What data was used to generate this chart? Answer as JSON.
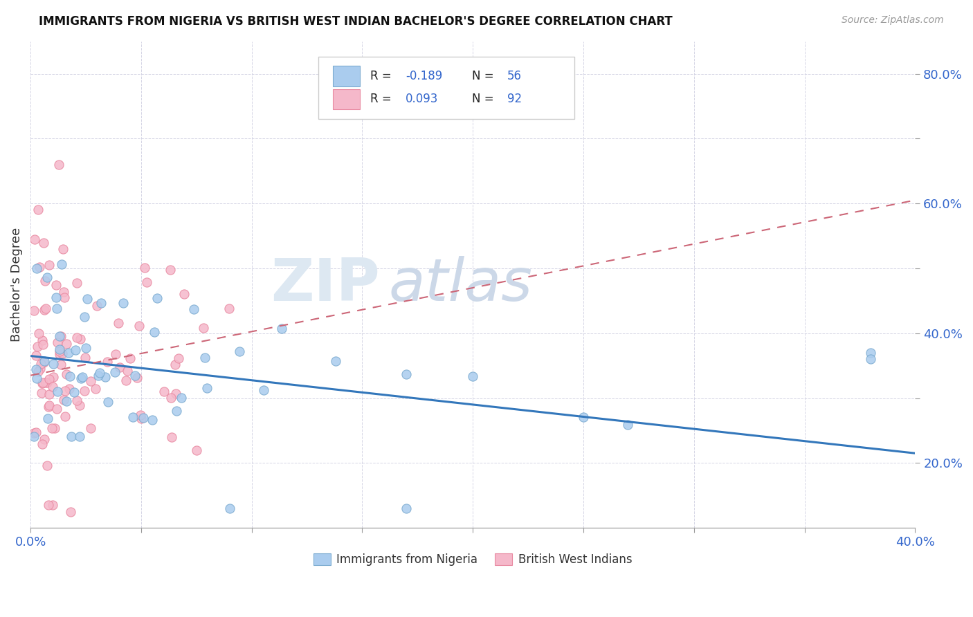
{
  "title": "IMMIGRANTS FROM NIGERIA VS BRITISH WEST INDIAN BACHELOR'S DEGREE CORRELATION CHART",
  "source": "Source: ZipAtlas.com",
  "ylabel": "Bachelor's Degree",
  "xlim": [
    0.0,
    0.4
  ],
  "ylim": [
    0.1,
    0.85
  ],
  "nigeria_color": "#aaccee",
  "nigeria_edge": "#7aaacf",
  "bwi_color": "#f5b8ca",
  "bwi_edge": "#e888a0",
  "nigeria_R": -0.189,
  "nigeria_N": 56,
  "bwi_R": 0.093,
  "bwi_N": 92,
  "nigeria_line_color": "#3377bb",
  "bwi_line_color": "#cc6677",
  "legend_R_color": "#3366cc",
  "nig_line_x0": 0.0,
  "nig_line_x1": 0.4,
  "nig_line_y0": 0.365,
  "nig_line_y1": 0.215,
  "bwi_line_x0": 0.0,
  "bwi_line_x1": 0.4,
  "bwi_line_y0": 0.335,
  "bwi_line_y1": 0.605
}
